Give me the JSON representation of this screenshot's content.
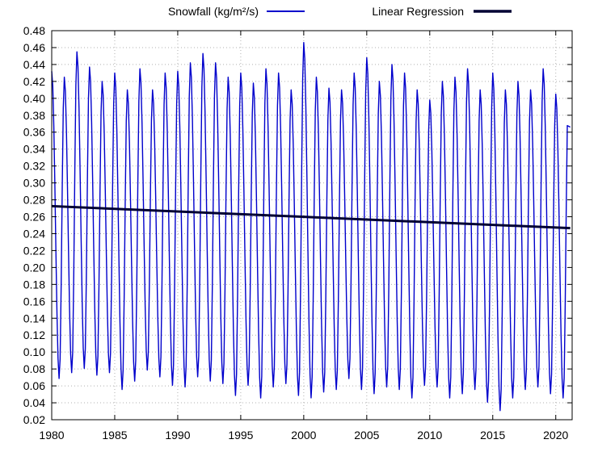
{
  "chart_data": {
    "type": "line",
    "title": "",
    "xlabel": "",
    "ylabel": "",
    "xlim": [
      1980,
      2021.3
    ],
    "ylim": [
      0.02,
      0.48
    ],
    "grid": true,
    "legend_position": "top",
    "x_ticks": [
      "1980",
      "1985",
      "1990",
      "1995",
      "2000",
      "2005",
      "2010",
      "2015",
      "2020"
    ],
    "x_tick_values": [
      1980,
      1985,
      1990,
      1995,
      2000,
      2005,
      2010,
      2015,
      2020
    ],
    "y_ticks": [
      "0.02",
      "0.04",
      "0.06",
      "0.08",
      "0.10",
      "0.12",
      "0.14",
      "0.16",
      "0.18",
      "0.20",
      "0.22",
      "0.24",
      "0.26",
      "0.28",
      "0.30",
      "0.32",
      "0.34",
      "0.36",
      "0.38",
      "0.40",
      "0.42",
      "0.44",
      "0.46",
      "0.48"
    ],
    "y_tick_values": [
      0.02,
      0.04,
      0.06,
      0.08,
      0.1,
      0.12,
      0.14,
      0.16,
      0.18,
      0.2,
      0.22,
      0.24,
      0.26,
      0.28,
      0.3,
      0.32,
      0.34,
      0.36,
      0.38,
      0.4,
      0.42,
      0.44,
      0.46,
      0.48
    ],
    "series": [
      {
        "name": "Snowfall (kg/m²/s)",
        "color": "#0000cc",
        "annual_start_x": 1980.0,
        "annual_peaks": [
          0.432,
          0.425,
          0.455,
          0.437,
          0.42,
          0.43,
          0.41,
          0.435,
          0.41,
          0.43,
          0.432,
          0.442,
          0.453,
          0.442,
          0.425,
          0.43,
          0.418,
          0.435,
          0.43,
          0.41,
          0.466,
          0.425,
          0.412,
          0.41,
          0.43,
          0.448,
          0.42,
          0.44,
          0.43,
          0.41,
          0.398,
          0.42,
          0.425,
          0.435,
          0.41,
          0.43,
          0.41,
          0.42,
          0.41,
          0.435,
          0.405
        ],
        "annual_troughs": [
          0.068,
          0.075,
          0.08,
          0.072,
          0.075,
          0.055,
          0.065,
          0.078,
          0.07,
          0.06,
          0.058,
          0.07,
          0.065,
          0.062,
          0.048,
          0.06,
          0.045,
          0.058,
          0.062,
          0.048,
          0.045,
          0.052,
          0.055,
          0.068,
          0.055,
          0.05,
          0.058,
          0.055,
          0.045,
          0.06,
          0.058,
          0.045,
          0.05,
          0.055,
          0.04,
          0.03,
          0.045,
          0.055,
          0.058,
          0.05,
          0.045
        ],
        "trough_phase": 0.6,
        "end_x": 2021.15,
        "end_value": 0.366
      },
      {
        "name": "Linear Regression",
        "color": "#000033",
        "x": [
          1980,
          2021.15
        ],
        "y": [
          0.2725,
          0.2465
        ]
      }
    ]
  }
}
